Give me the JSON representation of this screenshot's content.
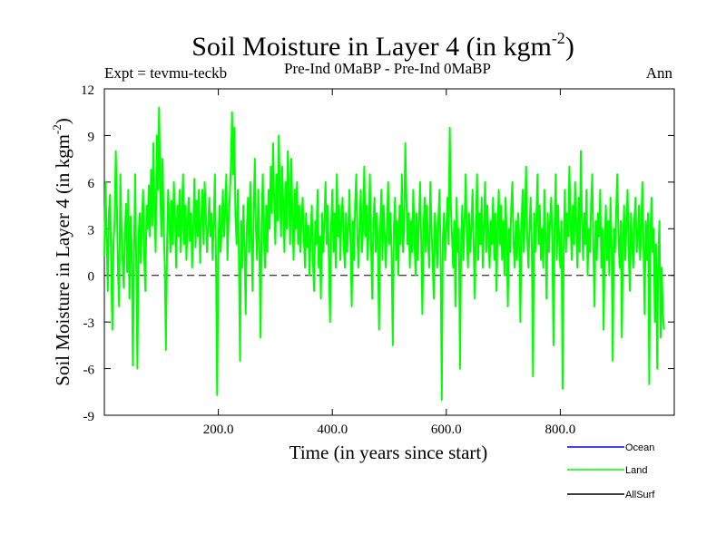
{
  "header": {
    "title": "Soil Moisture in Layer 4 (in kgm",
    "title_sup": "-2",
    "title_close": ")",
    "expt": "Expt = tevmu-teckb",
    "subtitle": "Pre-Ind 0MaBP - Pre-Ind 0MaBP",
    "period": "Ann"
  },
  "legend": {
    "items": [
      {
        "name": "Ocean",
        "color": "#0000ff"
      },
      {
        "name": "Land",
        "color": "#00ff00"
      },
      {
        "name": "AllSurf",
        "color": "#000000"
      }
    ]
  },
  "chart_data": {
    "type": "line",
    "title": "Soil Moisture in Layer 4 (in kgm-2)",
    "xlabel": "Time (in years since start)",
    "ylabel": "Soil Moisture in Layer 4 (in kgm",
    "ylabel_sup": "-2",
    "ylabel_close": ")",
    "xlim": [
      0,
      1000
    ],
    "ylim": [
      -9,
      12
    ],
    "xticks": [
      200,
      400,
      600,
      800
    ],
    "xtick_labels": [
      "200.0",
      "400.0",
      "600.0",
      "800.0"
    ],
    "yticks": [
      12,
      9,
      6,
      3,
      0,
      -3,
      -6,
      -9
    ],
    "ytick_labels": [
      "12",
      "9",
      "6",
      "3",
      "0",
      "-3",
      "-6",
      "-9"
    ],
    "zero_line": true,
    "series": [
      {
        "name": "Land",
        "color": "#00ff00",
        "x_start": 0,
        "x_step": 2,
        "values": [
          1.2,
          6.0,
          2.5,
          -1.0,
          4.0,
          5.2,
          0.5,
          -3.5,
          2.0,
          3.5,
          8.0,
          4.5,
          0.0,
          -2.0,
          6.5,
          3.2,
          1.0,
          -0.8,
          2.8,
          4.6,
          0.2,
          5.5,
          -1.5,
          3.8,
          2.0,
          -5.8,
          1.5,
          6.5,
          0.5,
          -6.0,
          2.5,
          4.0,
          0.8,
          3.5,
          5.5,
          1.0,
          -1.0,
          4.5,
          3.0,
          5.8,
          2.5,
          6.8,
          3.2,
          8.5,
          4.0,
          1.5,
          9.0,
          5.5,
          10.8,
          6.0,
          2.5,
          7.5,
          3.5,
          0.5,
          -4.8,
          2.0,
          5.5,
          3.5,
          1.5,
          4.8,
          2.0,
          6.0,
          3.5,
          0.5,
          4.5,
          2.5,
          5.5,
          1.5,
          3.8,
          6.5,
          2.0,
          4.5,
          1.0,
          3.5,
          5.0,
          2.2,
          4.0,
          0.5,
          3.0,
          6.2,
          1.8,
          4.8,
          2.5,
          5.5,
          0.8,
          3.5,
          5.5,
          2.0,
          6.0,
          4.0,
          1.5,
          3.0,
          5.0,
          2.5,
          4.0,
          1.0,
          3.5,
          6.5,
          0.5,
          -7.7,
          2.0,
          4.5,
          1.5,
          3.0,
          5.5,
          2.5,
          4.0,
          6.5,
          1.0,
          3.5,
          5.0,
          7.0,
          10.5,
          6.5,
          9.5,
          4.0,
          2.0,
          5.5,
          1.5,
          -5.5,
          3.5,
          0.5,
          4.5,
          2.0,
          -2.5,
          3.0,
          5.0,
          1.5,
          6.0,
          2.5,
          -1.0,
          4.0,
          7.5,
          3.0,
          1.0,
          5.5,
          2.0,
          -4.0,
          3.5,
          6.5,
          2.5,
          0.5,
          4.5,
          1.5,
          5.5,
          3.0,
          7.0,
          4.0,
          8.5,
          5.0,
          2.0,
          6.5,
          3.5,
          9.0,
          5.5,
          2.5,
          7.0,
          4.5,
          1.5,
          6.0,
          3.0,
          8.0,
          5.0,
          2.0,
          7.5,
          4.0,
          1.0,
          5.5,
          3.0,
          6.0,
          2.0,
          4.5,
          1.5,
          3.5,
          5.0,
          2.5,
          0.5,
          4.0,
          1.8,
          3.2,
          0.0,
          2.5,
          4.5,
          1.0,
          -1.0,
          3.5,
          2.0,
          5.5,
          0.5,
          2.5,
          -1.5,
          4.0,
          1.5,
          3.5,
          6.0,
          2.0,
          4.5,
          1.0,
          -3.0,
          3.0,
          5.5,
          1.5,
          4.0,
          0.5,
          6.5,
          2.5,
          4.5,
          1.0,
          3.5,
          5.0,
          2.0,
          0.5,
          4.0,
          1.5,
          3.0,
          5.5,
          2.0,
          -2.0,
          3.5,
          1.0,
          4.5,
          6.5,
          2.5,
          0.5,
          3.5,
          5.5,
          1.5,
          3.0,
          7.0,
          2.5,
          4.5,
          1.0,
          3.0,
          6.5,
          2.0,
          -1.5,
          3.5,
          5.0,
          1.5,
          4.0,
          2.0,
          -3.5,
          3.0,
          5.5,
          1.0,
          4.5,
          2.5,
          0.5,
          3.5,
          6.0,
          2.0,
          4.0,
          1.5,
          -4.5,
          3.0,
          5.0,
          1.0,
          3.5,
          0.0,
          4.5,
          2.0,
          6.5,
          1.5,
          3.0,
          8.5,
          5.0,
          2.0,
          4.0,
          0.5,
          3.5,
          1.5,
          5.5,
          2.5,
          0.0,
          4.0,
          1.0,
          3.5,
          6.0,
          2.0,
          -2.5,
          3.0,
          5.0,
          1.5,
          4.5,
          2.0,
          0.5,
          6.0,
          3.0,
          1.0,
          -1.5,
          4.0,
          2.5,
          0.5,
          3.5,
          5.5,
          1.5,
          -8.0,
          2.5,
          4.0,
          1.0,
          3.0,
          5.0,
          2.0,
          9.5,
          4.5,
          2.5,
          0.5,
          3.5,
          -2.0,
          5.0,
          1.5,
          3.0,
          -6.0,
          2.0,
          4.5,
          1.0,
          3.5,
          6.5,
          2.5,
          0.5,
          4.0,
          1.5,
          3.0,
          5.5,
          2.0,
          -1.5,
          3.5,
          6.5,
          1.0,
          4.0,
          2.0,
          5.0,
          0.5,
          3.0,
          6.0,
          1.5,
          4.5,
          2.5,
          0.5,
          3.5,
          2.0,
          5.0,
          1.0,
          4.0,
          -1.0,
          3.0,
          5.5,
          2.0,
          4.5,
          1.0,
          3.5,
          0.0,
          5.0,
          2.5,
          -2.0,
          3.0,
          1.5,
          4.5,
          6.0,
          2.0,
          0.5,
          3.5,
          1.0,
          4.0,
          2.5,
          -3.0,
          3.5,
          5.5,
          1.5,
          4.0,
          7.0,
          2.5,
          0.5,
          3.0,
          5.0,
          2.0,
          -6.5,
          4.0,
          1.5,
          3.5,
          6.5,
          2.0,
          4.5,
          1.0,
          3.0,
          0.5,
          5.5,
          2.5,
          -1.5,
          4.0,
          1.5,
          3.5,
          5.0,
          2.0,
          -4.5,
          3.0,
          6.5,
          1.0,
          4.5,
          2.5,
          0.5,
          3.5,
          -7.3,
          2.0,
          5.5,
          1.5,
          4.0,
          2.5,
          7.0,
          3.5,
          1.0,
          4.5,
          2.0,
          6.0,
          3.0,
          0.5,
          5.0,
          1.5,
          8.0,
          3.5,
          1.0,
          4.0,
          2.0,
          5.5,
          0.0,
          3.0,
          1.5,
          4.5,
          6.5,
          2.0,
          -2.0,
          3.5,
          1.0,
          4.0,
          2.5,
          5.5,
          0.5,
          3.0,
          -3.5,
          2.0,
          4.5,
          1.0,
          3.5,
          0.0,
          5.0,
          2.0,
          -5.5,
          3.0,
          1.5,
          4.0,
          6.5,
          2.5,
          0.5,
          3.5,
          -4.0,
          2.0,
          4.5,
          1.0,
          3.0,
          5.5,
          1.5,
          -1.0,
          4.0,
          2.0,
          0.5,
          3.5,
          5.0,
          1.5,
          2.5,
          4.5,
          1.0,
          3.0,
          6.0,
          2.0,
          -2.5,
          3.5,
          1.0,
          4.0,
          -7.0,
          2.5,
          5.0,
          1.5,
          3.0,
          -3.0,
          2.0,
          -6.0,
          1.5,
          3.5,
          -4.0,
          0.5,
          -2.5,
          -3.5
        ]
      }
    ]
  }
}
